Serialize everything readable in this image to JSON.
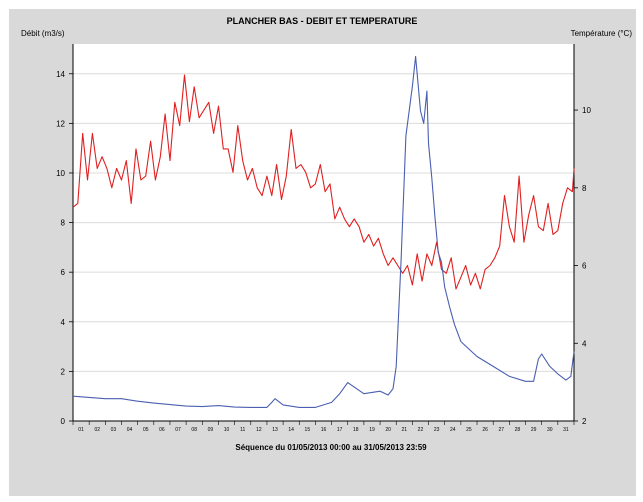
{
  "chart_data": {
    "type": "line",
    "title": "PLANCHER BAS - DEBIT ET TEMPERATURE",
    "ylabel_left": "Débit (m3/s)",
    "ylabel_right": "Température (°C)",
    "footer": "Séquence du  01/05/2013 00:00  au  31/05/2013 23:59",
    "x_ticks": [
      "01",
      "02",
      "03",
      "04",
      "05",
      "06",
      "07",
      "08",
      "09",
      "10",
      "11",
      "12",
      "13",
      "14",
      "15",
      "16",
      "17",
      "18",
      "19",
      "20",
      "21",
      "22",
      "23",
      "24",
      "25",
      "26",
      "27",
      "28",
      "29",
      "30",
      "31"
    ],
    "x_range": [
      0,
      31
    ],
    "y_left_range": [
      0,
      15.2
    ],
    "y_left_ticks": [
      0,
      2,
      4,
      6,
      8,
      10,
      12,
      14
    ],
    "y_right_range": [
      2,
      11.7
    ],
    "y_right_ticks": [
      2,
      4,
      6,
      8,
      10
    ],
    "grid": true,
    "series": [
      {
        "axis": "left",
        "color": "#4a5fb0",
        "x": [
          0,
          1,
          2,
          3,
          4,
          5,
          6,
          7,
          8,
          9,
          10,
          11,
          12,
          12.3,
          12.5,
          13,
          14,
          15,
          16,
          16.5,
          17,
          18,
          19,
          19.5,
          19.8,
          20,
          20.3,
          20.6,
          21,
          21.2,
          21.5,
          21.7,
          21.9,
          22,
          22.2,
          22.4,
          22.6,
          22.8,
          23,
          23.3,
          23.6,
          24,
          24.5,
          25,
          26,
          27,
          28,
          28.5,
          28.8,
          29,
          29.5,
          30,
          30.5,
          30.8,
          31
        ],
        "y": [
          1.0,
          0.95,
          0.9,
          0.9,
          0.8,
          0.72,
          0.66,
          0.6,
          0.58,
          0.62,
          0.56,
          0.55,
          0.55,
          0.75,
          0.9,
          0.65,
          0.55,
          0.55,
          0.75,
          1.1,
          1.55,
          1.1,
          1.2,
          1.05,
          1.3,
          2.2,
          6.5,
          11.5,
          13.5,
          14.7,
          12.5,
          12.0,
          13.3,
          11.2,
          9.8,
          8.2,
          6.8,
          6.4,
          5.4,
          4.6,
          3.9,
          3.2,
          2.9,
          2.6,
          2.2,
          1.8,
          1.6,
          1.6,
          2.5,
          2.7,
          2.2,
          1.9,
          1.65,
          1.8,
          2.8
        ]
      },
      {
        "axis": "right",
        "color": "#e02020",
        "x": [
          0,
          0.3,
          0.6,
          0.9,
          1.2,
          1.5,
          1.8,
          2.1,
          2.4,
          2.7,
          3.0,
          3.3,
          3.6,
          3.9,
          4.2,
          4.5,
          4.8,
          5.1,
          5.4,
          5.7,
          6.0,
          6.3,
          6.6,
          6.9,
          7.2,
          7.5,
          7.8,
          8.1,
          8.4,
          8.7,
          9.0,
          9.3,
          9.6,
          9.9,
          10.2,
          10.5,
          10.8,
          11.1,
          11.4,
          11.7,
          12.0,
          12.3,
          12.6,
          12.9,
          13.2,
          13.5,
          13.8,
          14.1,
          14.4,
          14.7,
          15.0,
          15.3,
          15.6,
          15.9,
          16.2,
          16.5,
          16.8,
          17.1,
          17.4,
          17.7,
          18.0,
          18.3,
          18.6,
          18.9,
          19.2,
          19.5,
          19.8,
          20.1,
          20.4,
          20.7,
          21.0,
          21.3,
          21.6,
          21.9,
          22.2,
          22.5,
          22.8,
          23.1,
          23.4,
          23.7,
          24.0,
          24.3,
          24.6,
          24.9,
          25.2,
          25.5,
          25.8,
          26.1,
          26.4,
          26.7,
          27.0,
          27.3,
          27.6,
          27.9,
          28.2,
          28.5,
          28.8,
          29.1,
          29.4,
          29.7,
          30.0,
          30.3,
          30.6,
          30.9,
          31
        ],
        "y": [
          7.5,
          7.6,
          9.4,
          8.2,
          9.4,
          8.5,
          8.8,
          8.5,
          8.0,
          8.5,
          8.2,
          8.7,
          7.6,
          9.0,
          8.2,
          8.3,
          9.2,
          8.2,
          8.8,
          9.9,
          8.7,
          10.2,
          9.6,
          10.9,
          9.7,
          10.6,
          9.8,
          10.0,
          10.2,
          9.4,
          10.1,
          9.0,
          9.0,
          8.4,
          9.6,
          8.7,
          8.2,
          8.5,
          8.0,
          7.8,
          8.3,
          7.8,
          8.6,
          7.7,
          8.3,
          9.5,
          8.5,
          8.6,
          8.4,
          8.0,
          8.1,
          8.6,
          7.9,
          8.1,
          7.2,
          7.5,
          7.2,
          7.0,
          7.2,
          7.0,
          6.6,
          6.8,
          6.5,
          6.7,
          6.3,
          6.0,
          6.2,
          6.0,
          5.8,
          6.0,
          5.5,
          6.3,
          5.6,
          6.3,
          6.0,
          6.6,
          5.9,
          5.8,
          6.2,
          5.4,
          5.7,
          6.0,
          5.5,
          5.8,
          5.4,
          5.9,
          6.0,
          6.2,
          6.5,
          7.8,
          7.0,
          6.6,
          8.3,
          6.6,
          7.3,
          7.8,
          7.0,
          6.9,
          7.6,
          6.8,
          6.9,
          7.6,
          8.0,
          7.9,
          8.5
        ]
      }
    ]
  }
}
